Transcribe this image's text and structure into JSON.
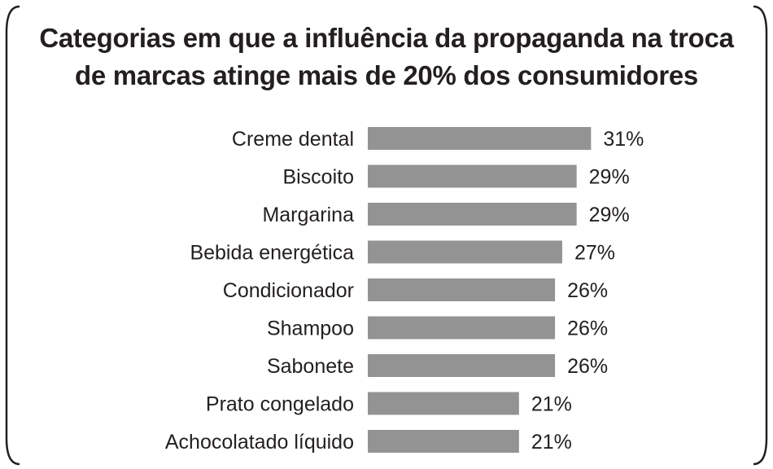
{
  "chart_data": {
    "type": "bar",
    "orientation": "horizontal",
    "title": "Categorias em que a influência da propaganda na troca de marcas atinge mais de 20% dos consumidores",
    "categories": [
      "Creme dental",
      "Biscoito",
      "Margarina",
      "Bebida energética",
      "Condicionador",
      "Shampoo",
      "Sabonete",
      "Prato congelado",
      "Achocolatado líquido"
    ],
    "values": [
      31,
      29,
      29,
      27,
      26,
      26,
      26,
      21,
      21
    ],
    "value_labels": [
      "31%",
      "29%",
      "29%",
      "27%",
      "26%",
      "26%",
      "26%",
      "21%",
      "21%"
    ],
    "unit": "%",
    "grid": false,
    "bar_color": "#939393"
  }
}
